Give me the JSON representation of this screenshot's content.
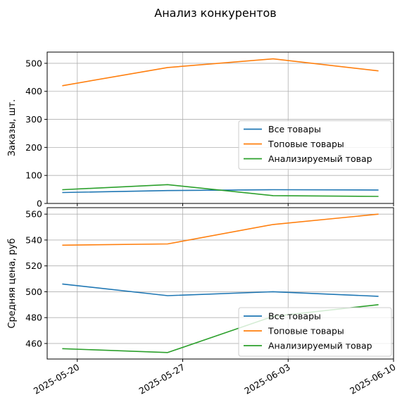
{
  "chart_data": {
    "type": "line",
    "title": "Анализ конкурентов",
    "x": [
      "2025-05-19",
      "2025-05-26",
      "2025-06-02",
      "2025-06-09"
    ],
    "xticks": [
      "2025-05-20",
      "2025-05-27",
      "2025-06-03",
      "2025-06-10"
    ],
    "xlim": [
      "2025-05-18",
      "2025-06-10"
    ],
    "grid": true,
    "colors": [
      "#1f77b4",
      "#ff7f0e",
      "#2ca02c"
    ],
    "panels": [
      {
        "ylabel": "Заказы, шт.",
        "ylim": [
          0,
          540
        ],
        "yticks": [
          0,
          100,
          200,
          300,
          400,
          500
        ],
        "legend_position": "center-right",
        "series": [
          {
            "name": "Все товары",
            "values": [
              39,
              46,
              49,
              48
            ]
          },
          {
            "name": "Топовые товары",
            "values": [
              420,
              485,
              516,
              473
            ]
          },
          {
            "name": "Анализируемый товар",
            "values": [
              49,
              67,
              28,
              25
            ]
          }
        ]
      },
      {
        "ylabel": "Средняя цена, руб",
        "ylim": [
          448,
          565
        ],
        "yticks": [
          460,
          480,
          500,
          520,
          540,
          560
        ],
        "legend_position": "lower-right",
        "series": [
          {
            "name": "Все товары",
            "values": [
              506,
              497,
              500,
              496.5
            ]
          },
          {
            "name": "Топовые товары",
            "values": [
              536,
              537,
              552,
              560
            ]
          },
          {
            "name": "Анализируемый товар",
            "values": [
              456,
              453,
              481,
              490
            ]
          }
        ]
      }
    ]
  }
}
